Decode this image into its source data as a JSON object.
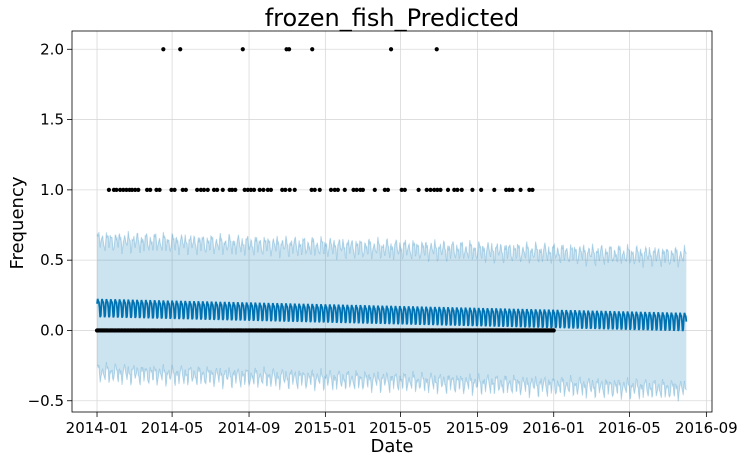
{
  "chart_data": {
    "type": "scatter",
    "title": "frozen_fish_Predicted",
    "xlabel": "Date",
    "ylabel": "Frequency",
    "xlim": [
      "2013-11-22",
      "2016-09-10"
    ],
    "ylim": [
      -0.58,
      2.13
    ],
    "grid": true,
    "x_ticks": [
      {
        "date": "2014-01-01",
        "label": "2014-01"
      },
      {
        "date": "2014-05-01",
        "label": "2014-05"
      },
      {
        "date": "2014-09-01",
        "label": "2014-09"
      },
      {
        "date": "2015-01-01",
        "label": "2015-01"
      },
      {
        "date": "2015-05-01",
        "label": "2015-05"
      },
      {
        "date": "2015-09-01",
        "label": "2015-09"
      },
      {
        "date": "2016-01-01",
        "label": "2016-01"
      },
      {
        "date": "2016-05-01",
        "label": "2016-05"
      },
      {
        "date": "2016-09-01",
        "label": "2016-09"
      }
    ],
    "y_ticks": [
      {
        "value": -0.5,
        "label": "−0.5"
      },
      {
        "value": 0.0,
        "label": "0.0"
      },
      {
        "value": 0.5,
        "label": "0.5"
      },
      {
        "value": 1.0,
        "label": "1.0"
      },
      {
        "value": 1.5,
        "label": "1.5"
      },
      {
        "value": 2.0,
        "label": "2.0"
      }
    ],
    "observed": {
      "color": "#000000",
      "x_start": "2014-01-01",
      "x_end": "2016-01-01",
      "baseline_value": 0.0,
      "points_value_2": [
        "2014-04-17",
        "2014-05-14",
        "2014-08-22",
        "2014-10-31",
        "2014-11-04",
        "2014-12-11",
        "2015-04-16",
        "2015-06-28"
      ],
      "points_value_1": [
        "2014-01-20",
        "2014-01-28",
        "2014-02-01",
        "2014-02-07",
        "2014-02-12",
        "2014-02-17",
        "2014-02-22",
        "2014-02-26",
        "2014-03-03",
        "2014-03-08",
        "2014-03-22",
        "2014-03-27",
        "2014-04-06",
        "2014-04-11",
        "2014-04-30",
        "2014-05-05",
        "2014-05-18",
        "2014-05-23",
        "2014-06-10",
        "2014-06-16",
        "2014-06-21",
        "2014-06-27",
        "2014-07-07",
        "2014-07-12",
        "2014-07-21",
        "2014-08-01",
        "2014-08-05",
        "2014-08-10",
        "2014-08-25",
        "2014-08-30",
        "2014-09-04",
        "2014-09-09",
        "2014-09-18",
        "2014-09-24",
        "2014-10-01",
        "2014-10-06",
        "2014-10-24",
        "2014-10-29",
        "2014-11-05",
        "2014-11-13",
        "2014-12-10",
        "2014-12-15",
        "2014-12-23",
        "2015-01-10",
        "2015-01-16",
        "2015-01-21",
        "2015-02-01",
        "2015-02-15",
        "2015-02-20",
        "2015-02-26",
        "2015-03-02",
        "2015-03-21",
        "2015-04-06",
        "2015-04-11",
        "2015-05-03",
        "2015-05-08",
        "2015-05-30",
        "2015-06-12",
        "2015-06-18",
        "2015-06-24",
        "2015-06-29",
        "2015-07-04",
        "2015-07-16",
        "2015-07-26",
        "2015-07-31",
        "2015-08-07",
        "2015-08-24",
        "2015-09-07",
        "2015-09-28",
        "2015-10-17",
        "2015-10-22",
        "2015-10-27",
        "2015-11-09",
        "2015-11-23",
        "2015-11-28"
      ]
    },
    "forecast": {
      "line_color": "#0072B2",
      "band_color": "#0072B2",
      "x_start": "2014-01-01",
      "x_end": "2016-07-31",
      "trend_start": 0.17,
      "trend_end": 0.07,
      "weekly_amplitude": 0.085,
      "lower_start": -0.3,
      "lower_end": -0.42,
      "upper_start": 0.64,
      "upper_end": 0.53
    }
  }
}
